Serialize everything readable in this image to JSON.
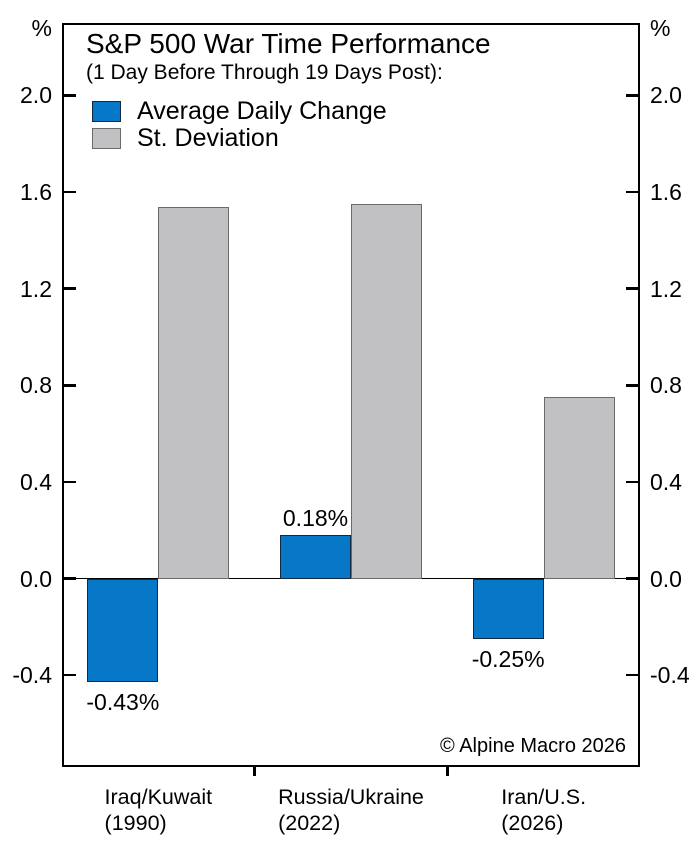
{
  "chart_data": {
    "type": "bar",
    "title": "S&P 500 War Time Performance",
    "subtitle": "(1 Day Before Through 19 Days Post):",
    "unit_label": "%",
    "categories": [
      {
        "name": "Iraq/Kuwait",
        "year": "(1990)"
      },
      {
        "name": "Russia/Ukraine",
        "year": "(2022)"
      },
      {
        "name": "Iran/U.S.",
        "year": "(2026)"
      }
    ],
    "series": [
      {
        "name": "Average Daily Change",
        "color": "#0778c8",
        "border_color": "#13293f",
        "values": [
          -0.43,
          0.18,
          -0.25
        ],
        "value_labels": [
          "-0.43%",
          "0.18%",
          "-0.25%"
        ]
      },
      {
        "name": "St. Deviation",
        "color": "#c1c1c3",
        "border_color": "#6a6a6a",
        "values": [
          1.54,
          1.55,
          0.75
        ],
        "value_labels": []
      }
    ],
    "y_axis": {
      "ticks": [
        2.0,
        1.6,
        1.2,
        0.8,
        0.4,
        0.0,
        -0.4
      ],
      "tick_labels": [
        "2.0",
        "1.6",
        "1.2",
        "0.8",
        "0.4",
        "0.0",
        "-0.4"
      ],
      "range": [
        -0.78,
        2.3
      ]
    },
    "legend_position": "top-left",
    "grid": false,
    "zero_line": true
  },
  "footer": {
    "copyright": "© Alpine Macro 2026"
  }
}
